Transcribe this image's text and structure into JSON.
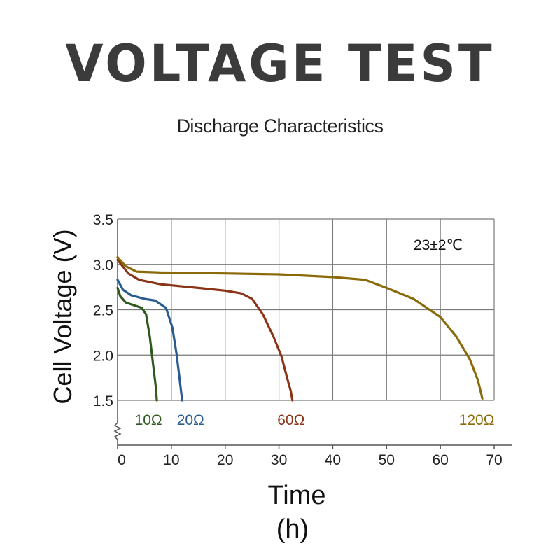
{
  "page": {
    "title": "VOLTAGE TEST",
    "subtitle": "Discharge Characteristics"
  },
  "chart_data": {
    "type": "line",
    "title": "VOLTAGE TEST",
    "subtitle": "Discharge Characteristics",
    "xlabel": "Time",
    "xunit": "(h)",
    "ylabel": "Cell Voltage (V)",
    "xlim": [
      0,
      70
    ],
    "ylim": [
      1.5,
      3.5
    ],
    "xticks": [
      0,
      10,
      20,
      30,
      40,
      50,
      60,
      70
    ],
    "yticks": [
      1.5,
      2.0,
      2.5,
      3.0,
      3.5
    ],
    "ytick_labels": [
      "1.5",
      "2.0",
      "2.5",
      "3.0",
      "3.5"
    ],
    "grid": true,
    "axis_break": true,
    "annotation": "23±2℃",
    "series": [
      {
        "name": "10Ω",
        "color": "#2f5a1e",
        "points": [
          [
            0,
            2.74
          ],
          [
            0.5,
            2.65
          ],
          [
            1.5,
            2.58
          ],
          [
            3,
            2.55
          ],
          [
            4.5,
            2.52
          ],
          [
            5.3,
            2.45
          ],
          [
            6,
            2.2
          ],
          [
            6.6,
            1.9
          ],
          [
            7.1,
            1.65
          ],
          [
            7.3,
            1.5
          ]
        ]
      },
      {
        "name": "20Ω",
        "color": "#2a5c8f",
        "points": [
          [
            0,
            2.83
          ],
          [
            1,
            2.72
          ],
          [
            2.5,
            2.66
          ],
          [
            5,
            2.62
          ],
          [
            7,
            2.6
          ],
          [
            9,
            2.52
          ],
          [
            10.2,
            2.3
          ],
          [
            11,
            2.0
          ],
          [
            11.6,
            1.7
          ],
          [
            12,
            1.5
          ]
        ]
      },
      {
        "name": "60Ω",
        "color": "#8a3518",
        "points": [
          [
            0,
            3.05
          ],
          [
            2,
            2.9
          ],
          [
            4,
            2.83
          ],
          [
            8,
            2.78
          ],
          [
            15,
            2.74
          ],
          [
            20,
            2.71
          ],
          [
            23,
            2.68
          ],
          [
            25,
            2.62
          ],
          [
            27,
            2.45
          ],
          [
            29,
            2.2
          ],
          [
            30.5,
            1.98
          ],
          [
            31.5,
            1.75
          ],
          [
            32.2,
            1.6
          ],
          [
            32.5,
            1.5
          ]
        ]
      },
      {
        "name": "120Ω",
        "color": "#8b6a0a",
        "points": [
          [
            0,
            3.08
          ],
          [
            1.5,
            2.98
          ],
          [
            3.5,
            2.92
          ],
          [
            8,
            2.91
          ],
          [
            20,
            2.9
          ],
          [
            30,
            2.89
          ],
          [
            40,
            2.86
          ],
          [
            46,
            2.83
          ],
          [
            50,
            2.74
          ],
          [
            55,
            2.62
          ],
          [
            60,
            2.42
          ],
          [
            63,
            2.2
          ],
          [
            65.5,
            1.95
          ],
          [
            67,
            1.72
          ],
          [
            67.8,
            1.52
          ]
        ]
      }
    ]
  }
}
